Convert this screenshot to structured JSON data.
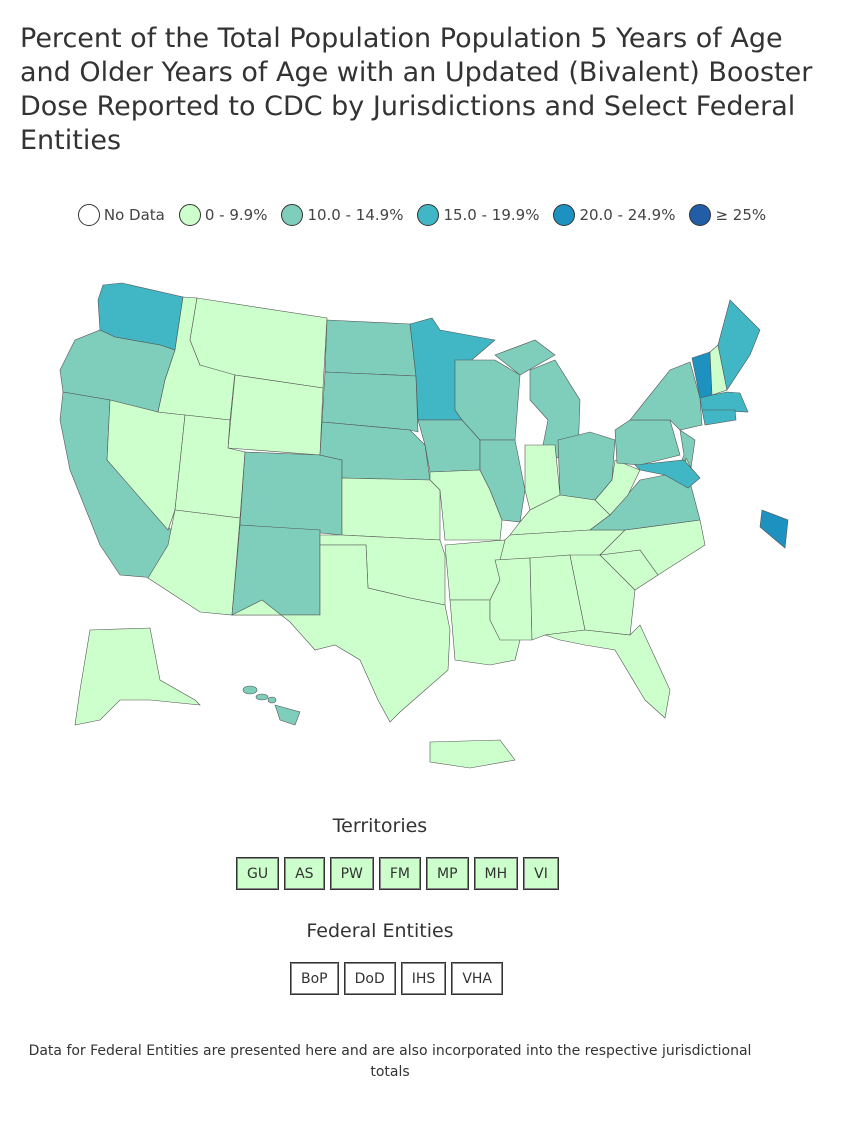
{
  "title": "Percent of the Total Population Population 5 Years of Age and Older Years of Age with an Updated (Bivalent) Booster Dose Reported to CDC by Jurisdictions and Select Federal Entities",
  "legend": [
    {
      "label": "No Data",
      "color": "#ffffff"
    },
    {
      "label": "0 - 9.9%",
      "color": "#ccffcc"
    },
    {
      "label": "10.0 - 14.9%",
      "color": "#7fcdbb"
    },
    {
      "label": "15.0 - 19.9%",
      "color": "#41b6c4"
    },
    {
      "label": "20.0 - 24.9%",
      "color": "#1d91c0"
    },
    {
      "label": "≥ 25%",
      "color": "#225ea8"
    }
  ],
  "jurisdiction_bins": {
    "WA": "15.0 - 19.9%",
    "OR": "10.0 - 14.9%",
    "CA": "10.0 - 14.9%",
    "NV": "0 - 9.9%",
    "ID": "0 - 9.9%",
    "MT": "0 - 9.9%",
    "WY": "0 - 9.9%",
    "UT": "0 - 9.9%",
    "AZ": "0 - 9.9%",
    "CO": "10.0 - 14.9%",
    "NM": "10.0 - 14.9%",
    "ND": "10.0 - 14.9%",
    "SD": "10.0 - 14.9%",
    "NE": "10.0 - 14.9%",
    "KS": "0 - 9.9%",
    "OK": "0 - 9.9%",
    "TX": "0 - 9.9%",
    "MN": "15.0 - 19.9%",
    "IA": "10.0 - 14.9%",
    "MO": "0 - 9.9%",
    "AR": "0 - 9.9%",
    "LA": "0 - 9.9%",
    "WI": "10.0 - 14.9%",
    "IL": "10.0 - 14.9%",
    "MI": "10.0 - 14.9%",
    "MI_UP": "10.0 - 14.9%",
    "IN": "0 - 9.9%",
    "OH": "10.0 - 14.9%",
    "KY": "0 - 9.9%",
    "TN": "0 - 9.9%",
    "MS": "0 - 9.9%",
    "AL": "0 - 9.9%",
    "GA": "0 - 9.9%",
    "FL": "0 - 9.9%",
    "SC": "0 - 9.9%",
    "NC": "0 - 9.9%",
    "VA": "10.0 - 14.9%",
    "WV": "0 - 9.9%",
    "PA": "10.0 - 14.9%",
    "NY": "10.0 - 14.9%",
    "VT": "20.0 - 24.9%",
    "NH": "0 - 9.9%",
    "ME": "15.0 - 19.9%",
    "MA": "15.0 - 19.9%",
    "CT": "15.0 - 19.9%",
    "NJ": "10.0 - 14.9%",
    "DE": "0 - 9.9%",
    "MD": "15.0 - 19.9%",
    "DC": "20.0 - 24.9%",
    "AK": "0 - 9.9%",
    "HI": "10.0 - 14.9%",
    "PR": "0 - 9.9%"
  },
  "territories": {
    "title": "Territories",
    "items": [
      {
        "label": "GU",
        "bin": "0 - 9.9%"
      },
      {
        "label": "AS",
        "bin": "0 - 9.9%"
      },
      {
        "label": "PW",
        "bin": "0 - 9.9%"
      },
      {
        "label": "FM",
        "bin": "0 - 9.9%"
      },
      {
        "label": "MP",
        "bin": "0 - 9.9%"
      },
      {
        "label": "MH",
        "bin": "0 - 9.9%"
      },
      {
        "label": "VI",
        "bin": "0 - 9.9%"
      }
    ]
  },
  "federal_entities": {
    "title": "Federal Entities",
    "items": [
      {
        "label": "BoP"
      },
      {
        "label": "DoD"
      },
      {
        "label": "IHS"
      },
      {
        "label": "VHA"
      }
    ]
  },
  "note": "Data for Federal Entities are presented here and are also incorporated into the respective jurisdictional totals"
}
